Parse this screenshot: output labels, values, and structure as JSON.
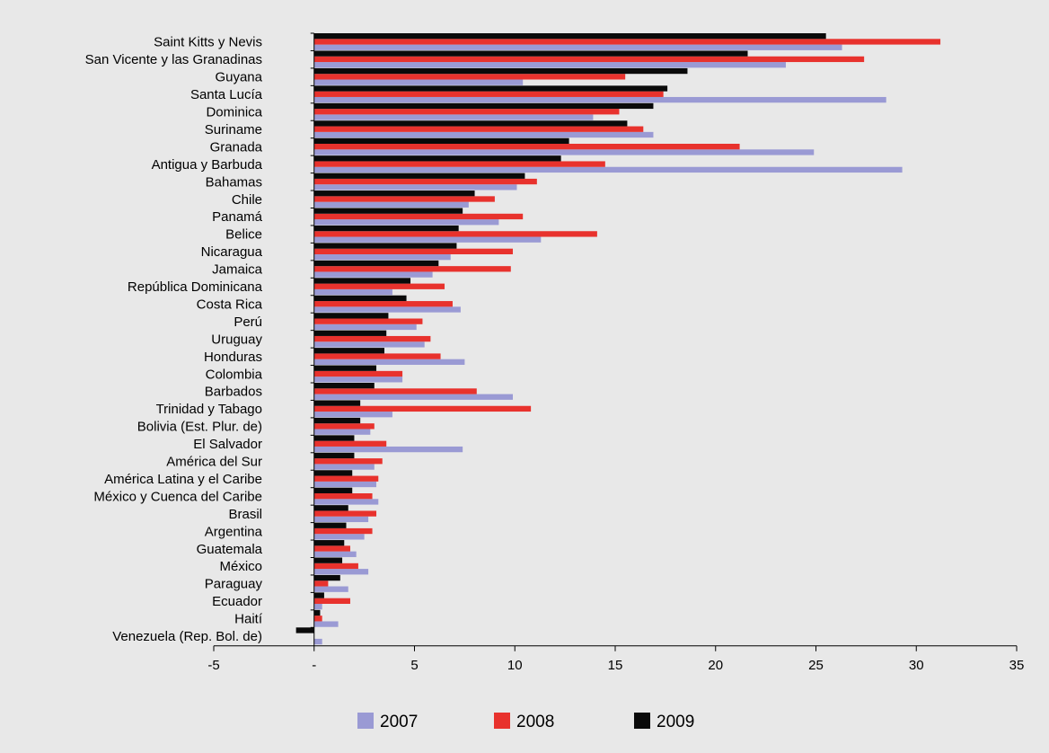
{
  "chart_data": {
    "type": "bar",
    "orientation": "horizontal",
    "title": "",
    "xlabel": "",
    "ylabel": "",
    "xlim": [
      -5,
      35
    ],
    "x_ticks": [
      -5,
      0,
      5,
      10,
      15,
      20,
      25,
      30,
      35
    ],
    "x_tick_labels": [
      "-5",
      "-",
      "5",
      "10",
      "15",
      "20",
      "25",
      "30",
      "35"
    ],
    "grid": false,
    "legend_position": "bottom",
    "categories": [
      "Saint Kitts y Nevis",
      "San Vicente y las Granadinas",
      "Guyana",
      "Santa Lucía",
      "Dominica",
      "Suriname",
      "Granada",
      "Antigua y Barbuda",
      "Bahamas",
      "Chile",
      "Panamá",
      "Belice",
      "Nicaragua",
      "Jamaica",
      "República Dominicana",
      "Costa Rica",
      "Perú",
      "Uruguay",
      "Honduras",
      "Colombia",
      "Barbados",
      "Trinidad y Tabago",
      "Bolivia (Est. Plur. de)",
      "El Salvador",
      "América del Sur",
      "América Latina y el Caribe",
      "México y Cuenca del Caribe",
      "Brasil",
      "Argentina",
      "Guatemala",
      "México",
      "Paraguay",
      "Ecuador",
      "Haití",
      "Venezuela (Rep. Bol. de)"
    ],
    "series": [
      {
        "name": "2007",
        "color": "#9a9ad4",
        "values": [
          26.3,
          23.5,
          10.4,
          28.5,
          13.9,
          16.9,
          24.9,
          29.3,
          10.1,
          7.7,
          9.2,
          11.3,
          6.8,
          5.9,
          3.9,
          7.3,
          5.1,
          5.5,
          7.5,
          4.4,
          9.9,
          3.9,
          2.8,
          7.4,
          3.0,
          3.1,
          3.2,
          2.7,
          2.5,
          2.1,
          2.7,
          1.7,
          0.4,
          1.2,
          0.4
        ]
      },
      {
        "name": "2008",
        "color": "#e8322d",
        "values": [
          31.2,
          27.4,
          15.5,
          17.4,
          15.2,
          16.4,
          21.2,
          14.5,
          11.1,
          9.0,
          10.4,
          14.1,
          9.9,
          9.8,
          6.5,
          6.9,
          5.4,
          5.8,
          6.3,
          4.4,
          8.1,
          10.8,
          3.0,
          3.6,
          3.4,
          3.2,
          2.9,
          3.1,
          2.9,
          1.8,
          2.2,
          0.7,
          1.8,
          0.4,
          0.0
        ]
      },
      {
        "name": "2009",
        "color": "#0a0a0a",
        "values": [
          25.5,
          21.6,
          18.6,
          17.6,
          16.9,
          15.6,
          12.7,
          12.3,
          10.5,
          8.0,
          7.4,
          7.2,
          7.1,
          6.2,
          4.8,
          4.6,
          3.7,
          3.6,
          3.5,
          3.1,
          3.0,
          2.3,
          2.3,
          2.0,
          2.0,
          1.9,
          1.9,
          1.7,
          1.6,
          1.5,
          1.4,
          1.3,
          0.5,
          0.3,
          -0.9
        ]
      }
    ]
  }
}
